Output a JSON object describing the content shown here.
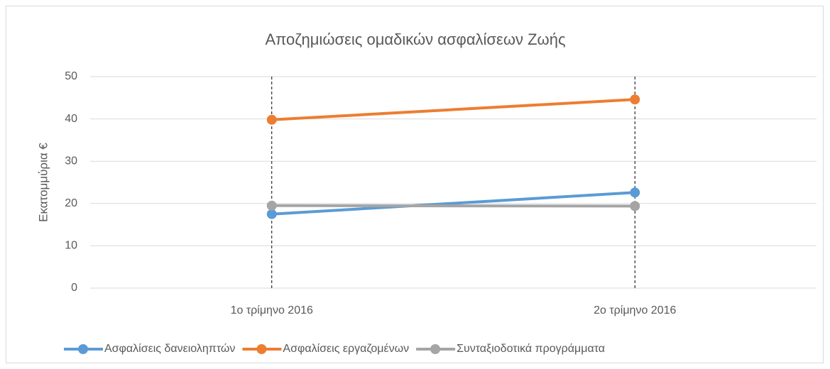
{
  "chart_data": {
    "type": "line",
    "title": "Αποζημιώσεις ομαδικών ασφαλίσεων Ζωής",
    "y_label": "Εκατομμύρια €",
    "categories": [
      "1ο τρίμηνο 2016",
      "2ο τρίμηνο 2016"
    ],
    "series": [
      {
        "name": "Ασφαλίσεις δανειοληπτών",
        "color": "#5b9bd5",
        "values": [
          17.5,
          22.6
        ]
      },
      {
        "name": "Ασφαλίσεις εργαζομένων",
        "color": "#ed7d31",
        "values": [
          39.8,
          44.6
        ]
      },
      {
        "name": "Συνταξιοδοτικά προγράμματα",
        "color": "#a5a5a5",
        "values": [
          19.5,
          19.4
        ]
      }
    ],
    "ylim": [
      0,
      50
    ],
    "yticks": [
      0,
      10,
      20,
      30,
      40,
      50
    ],
    "grid": true,
    "legend": "bottom"
  }
}
